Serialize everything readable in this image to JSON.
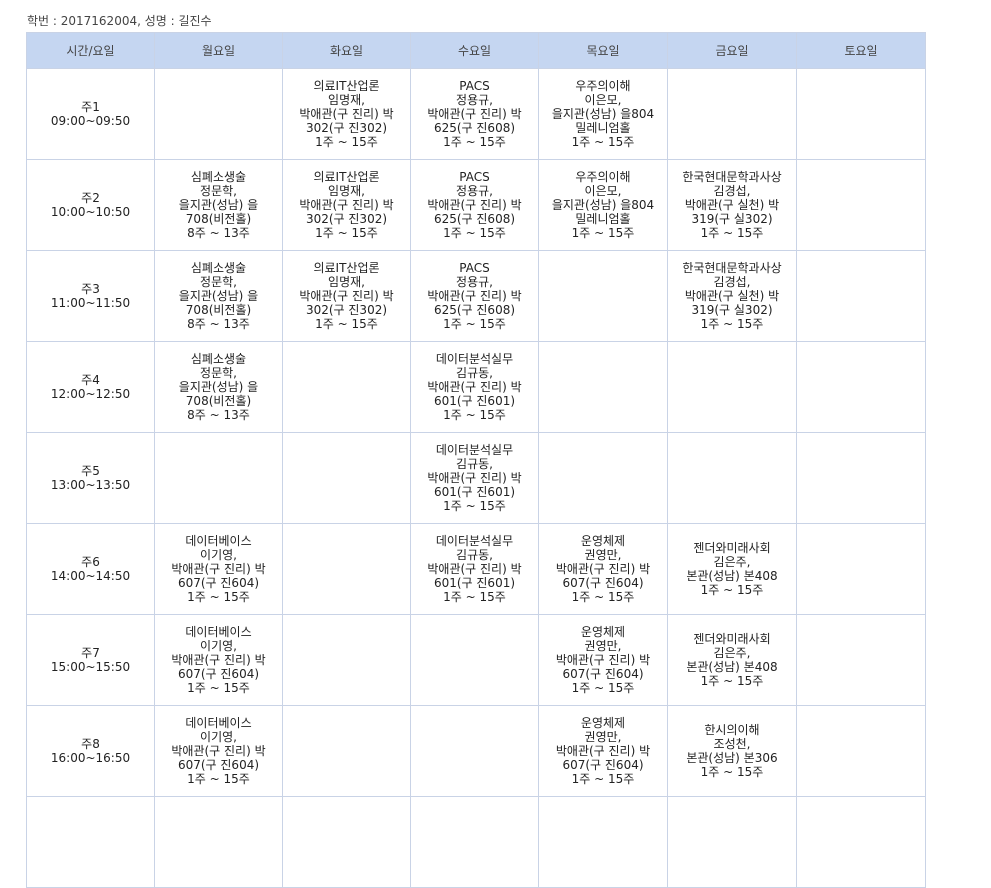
{
  "student_info": "학번 : 2017162004, 성명 : 길진수",
  "header": [
    "시간/요일",
    "월요일",
    "화요일",
    "수요일",
    "목요일",
    "금요일",
    "토요일"
  ],
  "rows": [
    {
      "period": "주1",
      "time": "09:00~09:50",
      "cells": [
        [],
        [
          "의료IT산업론",
          "임명재,",
          "박애관(구 진리) 박",
          "302(구 진302)",
          "1주 ~ 15주"
        ],
        [
          "PACS",
          "정용규,",
          "박애관(구 진리) 박",
          "625(구 진608)",
          "1주 ~ 15주"
        ],
        [
          "우주의이해",
          "이은모,",
          "을지관(성남) 을804",
          "밀레니엄홀",
          "1주 ~ 15주"
        ],
        [],
        []
      ]
    },
    {
      "period": "주2",
      "time": "10:00~10:50",
      "cells": [
        [
          "심폐소생술",
          "정문학,",
          "을지관(성남) 을",
          "708(비전홀)",
          "8주 ~ 13주"
        ],
        [
          "의료IT산업론",
          "임명재,",
          "박애관(구 진리) 박",
          "302(구 진302)",
          "1주 ~ 15주"
        ],
        [
          "PACS",
          "정용규,",
          "박애관(구 진리) 박",
          "625(구 진608)",
          "1주 ~ 15주"
        ],
        [
          "우주의이해",
          "이은모,",
          "을지관(성남) 을804",
          "밀레니엄홀",
          "1주 ~ 15주"
        ],
        [
          "한국현대문학과사상",
          "김경섭,",
          "박애관(구 실천) 박",
          "319(구 실302)",
          "1주 ~ 15주"
        ],
        []
      ]
    },
    {
      "period": "주3",
      "time": "11:00~11:50",
      "cells": [
        [
          "심폐소생술",
          "정문학,",
          "을지관(성남) 을",
          "708(비전홀)",
          "8주 ~ 13주"
        ],
        [
          "의료IT산업론",
          "임명재,",
          "박애관(구 진리) 박",
          "302(구 진302)",
          "1주 ~ 15주"
        ],
        [
          "PACS",
          "정용규,",
          "박애관(구 진리) 박",
          "625(구 진608)",
          "1주 ~ 15주"
        ],
        [],
        [
          "한국현대문학과사상",
          "김경섭,",
          "박애관(구 실천) 박",
          "319(구 실302)",
          "1주 ~ 15주"
        ],
        []
      ]
    },
    {
      "period": "주4",
      "time": "12:00~12:50",
      "cells": [
        [
          "심폐소생술",
          "정문학,",
          "을지관(성남) 을",
          "708(비전홀)",
          "8주 ~ 13주"
        ],
        [],
        [
          "데이터분석실무",
          "김규동,",
          "박애관(구 진리) 박",
          "601(구 진601)",
          "1주 ~ 15주"
        ],
        [],
        [],
        []
      ]
    },
    {
      "period": "주5",
      "time": "13:00~13:50",
      "cells": [
        [],
        [],
        [
          "데이터분석실무",
          "김규동,",
          "박애관(구 진리) 박",
          "601(구 진601)",
          "1주 ~ 15주"
        ],
        [],
        [],
        []
      ]
    },
    {
      "period": "주6",
      "time": "14:00~14:50",
      "cells": [
        [
          "데이터베이스",
          "이기영,",
          "박애관(구 진리) 박",
          "607(구 진604)",
          "1주 ~ 15주"
        ],
        [],
        [
          "데이터분석실무",
          "김규동,",
          "박애관(구 진리) 박",
          "601(구 진601)",
          "1주 ~ 15주"
        ],
        [
          "운영체제",
          "권영만,",
          "박애관(구 진리) 박",
          "607(구 진604)",
          "1주 ~ 15주"
        ],
        [
          "젠더와미래사회",
          "김은주,",
          "본관(성남) 본408",
          "1주 ~ 15주"
        ],
        []
      ]
    },
    {
      "period": "주7",
      "time": "15:00~15:50",
      "cells": [
        [
          "데이터베이스",
          "이기영,",
          "박애관(구 진리) 박",
          "607(구 진604)",
          "1주 ~ 15주"
        ],
        [],
        [],
        [
          "운영체제",
          "권영만,",
          "박애관(구 진리) 박",
          "607(구 진604)",
          "1주 ~ 15주"
        ],
        [
          "젠더와미래사회",
          "김은주,",
          "본관(성남) 본408",
          "1주 ~ 15주"
        ],
        []
      ]
    },
    {
      "period": "주8",
      "time": "16:00~16:50",
      "cells": [
        [
          "데이터베이스",
          "이기영,",
          "박애관(구 진리) 박",
          "607(구 진604)",
          "1주 ~ 15주"
        ],
        [],
        [],
        [
          "운영체제",
          "권영만,",
          "박애관(구 진리) 박",
          "607(구 진604)",
          "1주 ~ 15주"
        ],
        [
          "한시의이해",
          "조성천,",
          "본관(성남) 본306",
          "1주 ~ 15주"
        ],
        []
      ]
    },
    {
      "period": "",
      "time": "",
      "cells": [
        [],
        [],
        [],
        [],
        [],
        []
      ]
    }
  ]
}
